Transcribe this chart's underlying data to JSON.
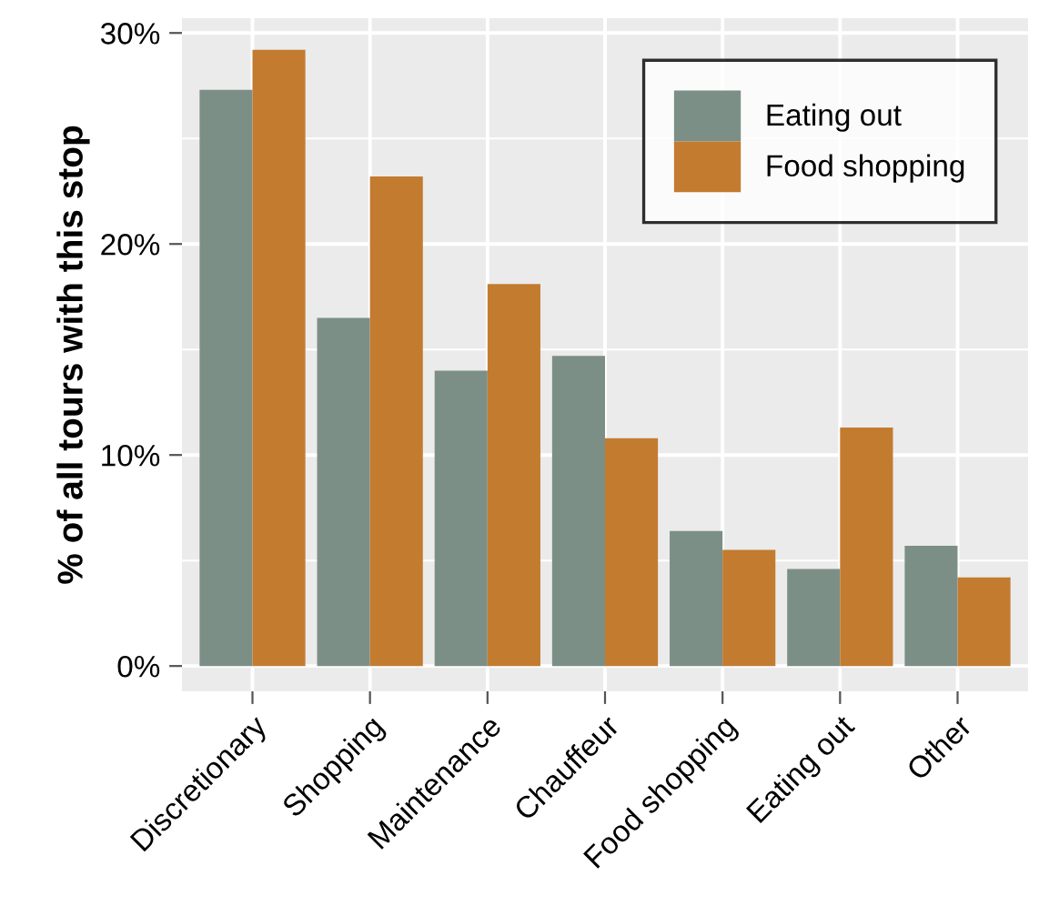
{
  "chart_data": {
    "type": "bar",
    "ylabel": "% of all tours with this stop",
    "categories": [
      "Discretionary",
      "Shopping",
      "Maintenance",
      "Chauffeur",
      "Food shopping",
      "Eating out",
      "Other"
    ],
    "series": [
      {
        "name": "Eating out",
        "color": "#7c8f86",
        "values": [
          27.3,
          16.5,
          14.0,
          14.7,
          6.4,
          4.6,
          5.7
        ]
      },
      {
        "name": "Food shopping",
        "color": "#c37b30",
        "values": [
          29.2,
          23.2,
          18.1,
          10.8,
          5.5,
          11.3,
          4.2
        ]
      }
    ],
    "ylim": [
      -1.2,
      30.7
    ],
    "yticks": [
      {
        "value": 0,
        "label": "0%"
      },
      {
        "value": 10,
        "label": "10%"
      },
      {
        "value": 20,
        "label": "20%"
      },
      {
        "value": 30,
        "label": "30%"
      }
    ],
    "grid": true,
    "legend": "top right"
  }
}
